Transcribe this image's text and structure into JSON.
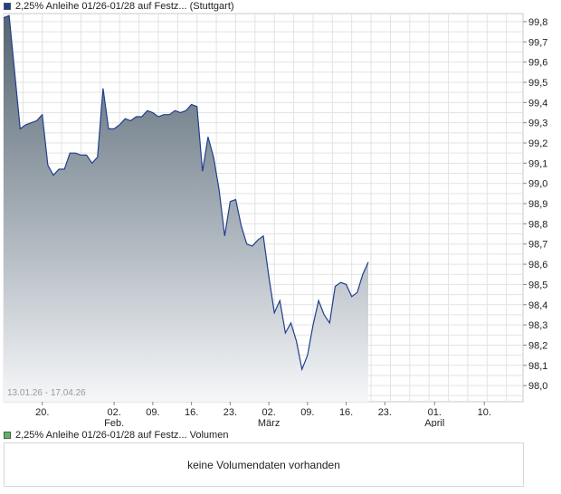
{
  "legend": {
    "series_label": "2,25% Anleihe 01/26-01/28 auf Festz... (Stuttgart)",
    "volume_label": "2,25% Anleihe 01/26-01/28 auf Festz... Volumen",
    "series_color": "#1f3f8f",
    "volume_color": "#5cb85c"
  },
  "volume": {
    "message": "keine Volumendaten vorhanden"
  },
  "range_label": "13.01.26 - 17.04.26",
  "chart_data": {
    "type": "area",
    "ylim": [
      97.92,
      99.84
    ],
    "y_ticks": [
      98.0,
      98.1,
      98.2,
      98.3,
      98.4,
      98.5,
      98.6,
      98.7,
      98.8,
      98.9,
      99.0,
      99.1,
      99.2,
      99.3,
      99.4,
      99.5,
      99.6,
      99.7,
      99.8
    ],
    "y_tick_labels": [
      "98,0",
      "98,1",
      "98,2",
      "98,3",
      "98,4",
      "98,5",
      "98,6",
      "98,7",
      "98,8",
      "98,9",
      "99,0",
      "99,1",
      "99,2",
      "99,3",
      "99,4",
      "99,5",
      "99,6",
      "99,7",
      "99,8"
    ],
    "x_range": [
      "2026-01-13",
      "2026-04-17"
    ],
    "x_ticks": [
      {
        "date": "2026-01-20",
        "label": "20.",
        "month": ""
      },
      {
        "date": "2026-02-02",
        "label": "02.",
        "month": "Feb."
      },
      {
        "date": "2026-02-09",
        "label": "09.",
        "month": ""
      },
      {
        "date": "2026-02-16",
        "label": "16.",
        "month": ""
      },
      {
        "date": "2026-02-23",
        "label": "23.",
        "month": ""
      },
      {
        "date": "2026-03-02",
        "label": "02.",
        "month": "März"
      },
      {
        "date": "2026-03-09",
        "label": "09.",
        "month": ""
      },
      {
        "date": "2026-03-16",
        "label": "16.",
        "month": ""
      },
      {
        "date": "2026-03-23",
        "label": "23.",
        "month": ""
      },
      {
        "date": "2026-04-01",
        "label": "01.",
        "month": "April"
      },
      {
        "date": "2026-04-10",
        "label": "10.",
        "month": ""
      }
    ],
    "series": [
      {
        "points": [
          [
            "2026-01-13",
            99.82
          ],
          [
            "2026-01-14",
            99.83
          ],
          [
            "2026-01-15",
            99.55
          ],
          [
            "2026-01-16",
            99.27
          ],
          [
            "2026-01-17",
            99.29
          ],
          [
            "2026-01-18",
            99.3
          ],
          [
            "2026-01-19",
            99.31
          ],
          [
            "2026-01-20",
            99.34
          ],
          [
            "2026-01-21",
            99.09
          ],
          [
            "2026-01-22",
            99.04
          ],
          [
            "2026-01-23",
            99.07
          ],
          [
            "2026-01-24",
            99.07
          ],
          [
            "2026-01-25",
            99.15
          ],
          [
            "2026-01-26",
            99.15
          ],
          [
            "2026-01-27",
            99.14
          ],
          [
            "2026-01-28",
            99.14
          ],
          [
            "2026-01-29",
            99.1
          ],
          [
            "2026-01-30",
            99.13
          ],
          [
            "2026-01-31",
            99.47
          ],
          [
            "2026-02-01",
            99.27
          ],
          [
            "2026-02-02",
            99.27
          ],
          [
            "2026-02-03",
            99.29
          ],
          [
            "2026-02-04",
            99.32
          ],
          [
            "2026-02-05",
            99.31
          ],
          [
            "2026-02-06",
            99.33
          ],
          [
            "2026-02-07",
            99.33
          ],
          [
            "2026-02-08",
            99.36
          ],
          [
            "2026-02-09",
            99.35
          ],
          [
            "2026-02-10",
            99.33
          ],
          [
            "2026-02-11",
            99.34
          ],
          [
            "2026-02-12",
            99.34
          ],
          [
            "2026-02-13",
            99.36
          ],
          [
            "2026-02-14",
            99.35
          ],
          [
            "2026-02-15",
            99.36
          ],
          [
            "2026-02-16",
            99.39
          ],
          [
            "2026-02-17",
            99.38
          ],
          [
            "2026-02-18",
            99.06
          ],
          [
            "2026-02-19",
            99.23
          ],
          [
            "2026-02-20",
            99.13
          ],
          [
            "2026-02-21",
            98.97
          ],
          [
            "2026-02-22",
            98.74
          ],
          [
            "2026-02-23",
            98.91
          ],
          [
            "2026-02-24",
            98.92
          ],
          [
            "2026-02-25",
            98.79
          ],
          [
            "2026-02-26",
            98.7
          ],
          [
            "2026-02-27",
            98.69
          ],
          [
            "2026-02-28",
            98.72
          ],
          [
            "2026-03-01",
            98.74
          ],
          [
            "2026-03-02",
            98.54
          ],
          [
            "2026-03-03",
            98.36
          ],
          [
            "2026-03-04",
            98.42
          ],
          [
            "2026-03-05",
            98.26
          ],
          [
            "2026-03-06",
            98.31
          ],
          [
            "2026-03-07",
            98.22
          ],
          [
            "2026-03-08",
            98.08
          ],
          [
            "2026-03-09",
            98.15
          ],
          [
            "2026-03-10",
            98.3
          ],
          [
            "2026-03-11",
            98.42
          ],
          [
            "2026-03-12",
            98.35
          ],
          [
            "2026-03-13",
            98.31
          ],
          [
            "2026-03-14",
            98.49
          ],
          [
            "2026-03-15",
            98.51
          ],
          [
            "2026-03-16",
            98.5
          ],
          [
            "2026-03-17",
            98.44
          ],
          [
            "2026-03-18",
            98.46
          ],
          [
            "2026-03-19",
            98.55
          ],
          [
            "2026-03-20",
            98.61
          ]
        ]
      }
    ]
  }
}
